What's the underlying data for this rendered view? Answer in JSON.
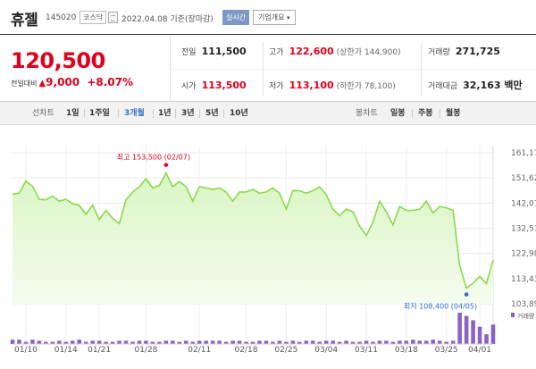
{
  "header": {
    "name": "휴젤",
    "code": "145020",
    "market": "코스닥",
    "date": "2022.04.08 기준(장마감)",
    "realtime": "실시간",
    "company_info": "기업개요"
  },
  "price": {
    "current": "120,500",
    "change_label": "전일대비",
    "change": "9,000",
    "change_pct": "+8.07%"
  },
  "info": {
    "prev_close": {
      "label": "전일",
      "value": "111,500"
    },
    "open": {
      "label": "시가",
      "value": "113,500"
    },
    "high": {
      "label": "고가",
      "value": "122,600",
      "sub": "(상한가 144,900)"
    },
    "low": {
      "label": "저가",
      "value": "113,100",
      "sub": "(하한가 78,100)"
    },
    "volume": {
      "label": "거래량",
      "value": "271,725"
    },
    "amount": {
      "label": "거래대금",
      "value": "32,163 백만"
    }
  },
  "tabs": {
    "line_label": "선차트",
    "periods": [
      "1일",
      "1주일",
      "3개월",
      "1년",
      "3년",
      "5년",
      "10년"
    ],
    "active": "3개월",
    "candle_label": "봉차트",
    "candles": [
      "일봉",
      "주봉",
      "월봉"
    ]
  },
  "colors": {
    "accent_red": "#e0001b",
    "line_green": "#8bd94a",
    "fill_green": "#d9f5c3",
    "volume_purple": "#8a62c4",
    "marker_blue": "#2a6fd6",
    "tab_active": "#3a6fc1"
  },
  "chart_data": {
    "type": "area",
    "y_ticks": [
      "161,170",
      "151,624",
      "142,077",
      "132,530",
      "122,983",
      "113,437",
      "103,890"
    ],
    "ylim": [
      103890,
      161170
    ],
    "x_ticks": [
      "01/10",
      "01/14",
      "01/21",
      "01/28",
      "02/11",
      "02/18",
      "02/25",
      "03/04",
      "03/11",
      "03/18",
      "03/25",
      "04/01"
    ],
    "max_label": "최고 153,500 (02/07)",
    "min_label": "최저 108,400 (04/05)",
    "volume_label": "거래량",
    "series": [
      {
        "values": [
          145500,
          145800,
          150500,
          148500,
          143500,
          143300,
          144800,
          142800,
          143500,
          141800,
          141300,
          137800,
          141300,
          135800,
          139300,
          136300,
          134300,
          143300,
          146300,
          148300,
          151300,
          147800,
          148800,
          153500,
          148300,
          150300,
          148300,
          142800,
          148300,
          147800,
          147300,
          147800,
          146300,
          142800,
          146300,
          146300,
          147300,
          145800,
          146300,
          147800,
          145800,
          139800,
          146800,
          146800,
          145800,
          146800,
          148300,
          145300,
          139800,
          137300,
          139800,
          138800,
          133300,
          129800,
          134800,
          142800,
          138800,
          133800,
          140800,
          139300,
          139300,
          139800,
          142800,
          138300,
          140800,
          140300,
          139300,
          118300,
          109800,
          111800,
          114300,
          111500,
          120500
        ]
      }
    ],
    "volume": [
      4,
      4,
      2,
      4,
      3,
      2,
      2,
      3,
      2,
      3,
      4,
      2,
      3,
      3,
      2,
      2,
      3,
      3,
      2,
      3,
      3,
      2,
      2,
      3,
      3,
      2,
      3,
      2,
      3,
      3,
      3,
      3,
      2,
      3,
      3,
      2,
      2,
      3,
      3,
      2,
      3,
      2,
      3,
      2,
      3,
      3,
      2,
      3,
      3,
      2,
      3,
      2,
      2,
      3,
      2,
      3,
      3,
      2,
      3,
      3,
      4,
      3,
      3,
      4,
      3,
      2,
      3,
      29,
      26,
      22,
      16,
      9,
      18
    ]
  }
}
